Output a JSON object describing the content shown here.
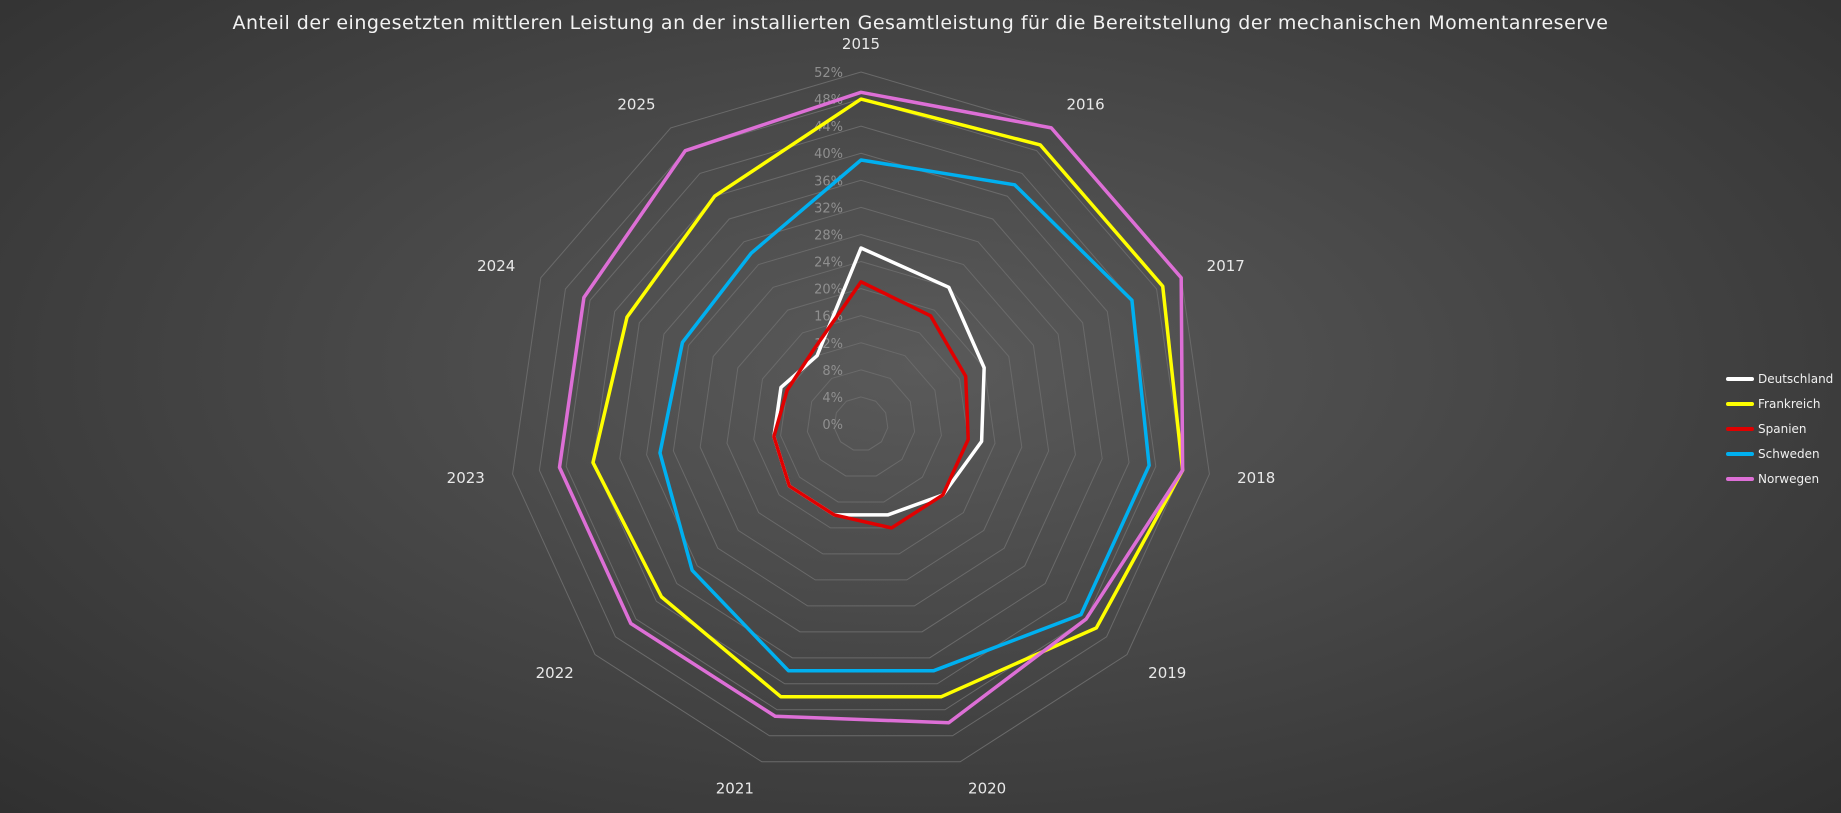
{
  "chart_data": {
    "type": "radar",
    "title": "Anteil der eingesetzten mittleren Leistung an der installierten Gesamtleistung für die Bereitstellung der mechanischen Momentanreserve",
    "categories": [
      "2015",
      "2016",
      "2017",
      "2018",
      "2019",
      "2020",
      "2021",
      "2022",
      "2023",
      "2024",
      "2025"
    ],
    "radial_axis": {
      "min": 0,
      "max": 52,
      "step": 4,
      "tick_labels": [
        "0%",
        "4%",
        "8%",
        "12%",
        "16%",
        "20%",
        "24%",
        "28%",
        "32%",
        "36%",
        "40%",
        "44%",
        "48%",
        "52%"
      ]
    },
    "grid": true,
    "legend_position": "right",
    "series": [
      {
        "name": "Deutschland",
        "color": "#ffffff",
        "values": [
          26,
          24,
          20,
          18,
          16,
          14,
          14,
          14,
          13,
          13,
          12
        ]
      },
      {
        "name": "Frankreich",
        "color": "#ffff00",
        "values": [
          48,
          49,
          49,
          48,
          46,
          42,
          42,
          39,
          40,
          38,
          40
        ]
      },
      {
        "name": "Spanien",
        "color": "#e00000",
        "values": [
          21,
          19,
          17,
          16,
          16,
          16,
          14,
          14,
          13,
          12,
          13
        ]
      },
      {
        "name": "Schweden",
        "color": "#00b0f0",
        "values": [
          39,
          42,
          44,
          43,
          43,
          38,
          38,
          33,
          30,
          29,
          30
        ]
      },
      {
        "name": "Norwegen",
        "color": "#dd6fd6",
        "values": [
          49,
          52,
          52,
          48,
          44,
          46,
          45,
          45,
          45,
          45,
          48
        ]
      }
    ]
  }
}
